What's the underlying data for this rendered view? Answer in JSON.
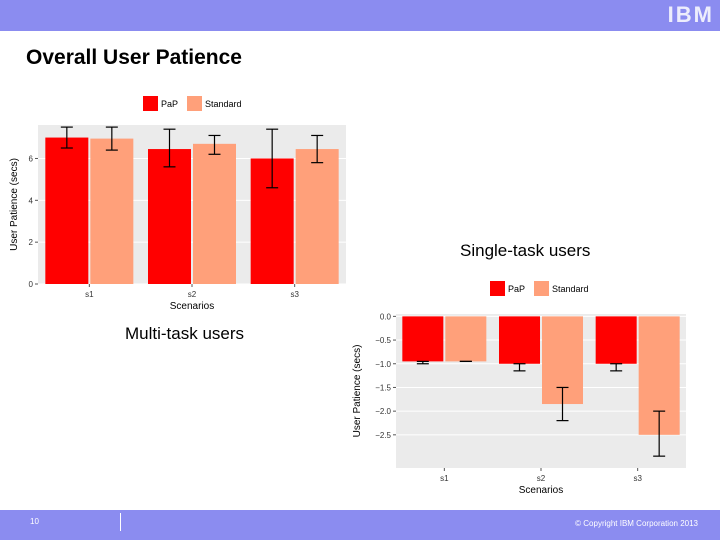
{
  "slide": {
    "title": "Overall User Patience",
    "brand": "IBM",
    "single_task_label": "Single-task users",
    "multi_task_label": "Multi-task users",
    "page_number": "10",
    "copyright": "© Copyright IBM Corporation 2013"
  },
  "colors": {
    "bar": "#8b8cf0",
    "pap": "#ff0000",
    "standard": "#ffa07a",
    "panel": "#ebebeb"
  },
  "chart_data": [
    {
      "type": "bar",
      "categories": [
        "s1",
        "s2",
        "s3"
      ],
      "xlabel": "Scenarios",
      "ylabel": "User Patience (secs)",
      "ylim": [
        0,
        7.6
      ],
      "yticks": [
        0,
        2,
        4,
        6
      ],
      "legend_position": "top",
      "grid": true,
      "series": [
        {
          "name": "PaP",
          "values": [
            7.0,
            6.45,
            6.0
          ],
          "errors": [
            [
              6.5,
              7.5
            ],
            [
              5.6,
              7.4
            ],
            [
              4.6,
              7.4
            ]
          ]
        },
        {
          "name": "Standard",
          "values": [
            6.95,
            6.7,
            6.45
          ],
          "errors": [
            [
              6.4,
              7.5
            ],
            [
              6.2,
              7.1
            ],
            [
              5.8,
              7.1
            ]
          ]
        }
      ]
    },
    {
      "type": "bar",
      "categories": [
        "s1",
        "s2",
        "s3"
      ],
      "xlabel": "Scenarios",
      "ylabel": "User Patience (secs)",
      "ylim": [
        -3.2,
        0.05
      ],
      "yticks": [
        0.0,
        -0.5,
        -1.0,
        -1.5,
        -2.0,
        -2.5
      ],
      "ytick_labels": [
        "0.0",
        "−0.5",
        "−1.0",
        "−1.5",
        "−2.0",
        "−2.5"
      ],
      "legend_position": "top",
      "grid": true,
      "series": [
        {
          "name": "PaP",
          "values": [
            -0.95,
            -1.0,
            -1.0
          ],
          "errors": [
            [
              -1.0,
              -0.95
            ],
            [
              -1.15,
              -1.0
            ],
            [
              -1.15,
              -1.0
            ]
          ]
        },
        {
          "name": "Standard",
          "values": [
            -0.95,
            -1.85,
            -2.5
          ],
          "errors": [
            [
              -0.95,
              -0.95
            ],
            [
              -2.2,
              -1.5
            ],
            [
              -2.95,
              -2.0
            ]
          ]
        }
      ]
    }
  ]
}
